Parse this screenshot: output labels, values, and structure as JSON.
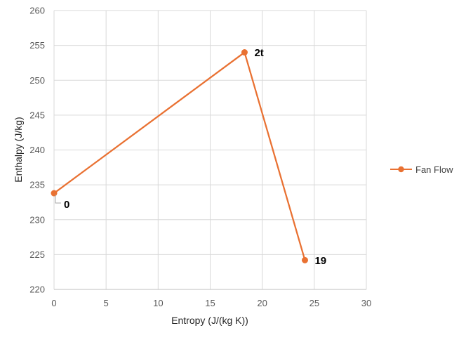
{
  "chart_data": {
    "type": "scatter",
    "xlabel": "Entropy (J/(kg K))",
    "ylabel": "Enthalpy (J/kg)",
    "xlim": [
      0,
      30
    ],
    "ylim": [
      220,
      260
    ],
    "xticks": [
      0,
      5,
      10,
      15,
      20,
      25,
      30
    ],
    "yticks": [
      220,
      225,
      230,
      235,
      240,
      245,
      250,
      255,
      260
    ],
    "grid": true,
    "legend_position": "right",
    "series": [
      {
        "name": "Fan Flow",
        "color": "#E97132",
        "points": [
          {
            "x": 0,
            "y": 233.8,
            "label": "0"
          },
          {
            "x": 18.3,
            "y": 254.0,
            "label": "2t"
          },
          {
            "x": 24.1,
            "y": 224.2,
            "label": "19"
          }
        ]
      }
    ]
  }
}
